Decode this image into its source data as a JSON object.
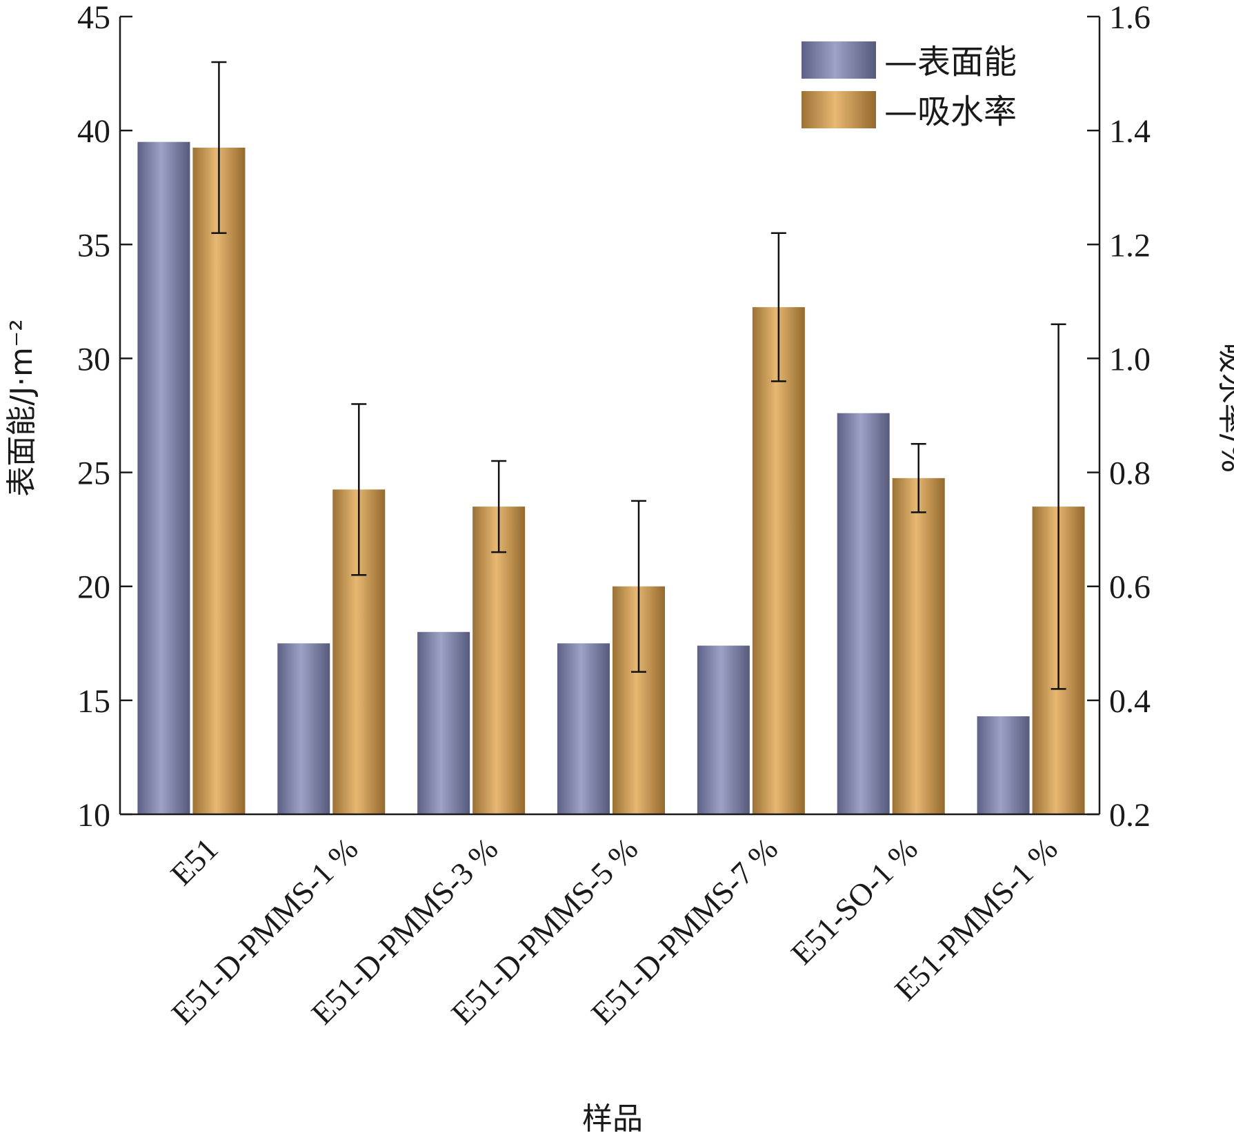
{
  "chart_data": {
    "type": "bar",
    "categories": [
      "E51",
      "E51-D-PMMS-1 %",
      "E51-D-PMMS-3 %",
      "E51-D-PMMS-5 %",
      "E51-D-PMMS-7 %",
      "E51-SO-1 %",
      "E51-PMMS-1 %"
    ],
    "series": [
      {
        "name": "—表面能",
        "axis": "left",
        "values": [
          39.5,
          17.5,
          18.0,
          17.5,
          17.4,
          27.6,
          14.3
        ],
        "color": "#8a8fb3"
      },
      {
        "name": "—吸水率",
        "axis": "right",
        "values": [
          1.37,
          0.77,
          0.74,
          0.6,
          1.09,
          0.79,
          0.74
        ],
        "error_low": [
          1.22,
          0.62,
          0.66,
          0.45,
          0.96,
          0.73,
          0.42
        ],
        "error_high": [
          1.52,
          0.92,
          0.82,
          0.75,
          1.22,
          0.85,
          1.06
        ],
        "color": "#d9a860"
      }
    ],
    "xlabel": "样品",
    "ylabel_left": "表面能/J·m⁻²",
    "ylabel_right": "吸水率/%",
    "ylim_left": [
      10,
      45
    ],
    "ylim_right": [
      0.2,
      1.6
    ],
    "left_ticks": [
      "10",
      "15",
      "20",
      "25",
      "30",
      "35",
      "40",
      "45"
    ],
    "right_ticks": [
      "0.2",
      "0.4",
      "0.6",
      "0.8",
      "1.0",
      "1.2",
      "1.4",
      "1.6"
    ],
    "legend_position": "top-right",
    "grid": false
  }
}
